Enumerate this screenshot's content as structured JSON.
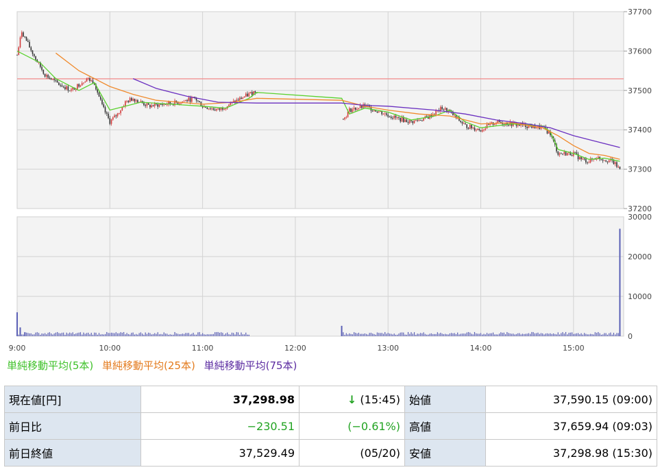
{
  "chart_data": [
    {
      "type": "candlestick",
      "ylim": [
        37200,
        37700
      ],
      "y_ticks": [
        "37700",
        "37600",
        "37500",
        "37400",
        "37300",
        "37200"
      ],
      "x_ticks": [
        "9:00",
        "10:00",
        "11:00",
        "12:00",
        "13:00",
        "14:00",
        "15:00"
      ],
      "reference_line": 37529.49,
      "price_path": [
        [
          "9:00",
          37590
        ],
        [
          "9:03",
          37650
        ],
        [
          "9:08",
          37610
        ],
        [
          "9:12",
          37580
        ],
        [
          "9:18",
          37540
        ],
        [
          "9:25",
          37520
        ],
        [
          "9:35",
          37500
        ],
        [
          "9:45",
          37530
        ],
        [
          "9:50",
          37520
        ],
        [
          "9:55",
          37460
        ],
        [
          "10:00",
          37420
        ],
        [
          "10:05",
          37440
        ],
        [
          "10:10",
          37470
        ],
        [
          "10:15",
          37480
        ],
        [
          "10:25",
          37460
        ],
        [
          "10:35",
          37465
        ],
        [
          "10:45",
          37470
        ],
        [
          "10:55",
          37480
        ],
        [
          "11:00",
          37460
        ],
        [
          "11:10",
          37450
        ],
        [
          "11:20",
          37470
        ],
        [
          "11:30",
          37490
        ],
        [
          "11:35",
          37500
        ],
        [
          "12:30",
          37420
        ],
        [
          "12:35",
          37450
        ],
        [
          "12:45",
          37460
        ],
        [
          "12:55",
          37445
        ],
        [
          "13:05",
          37430
        ],
        [
          "13:15",
          37420
        ],
        [
          "13:25",
          37430
        ],
        [
          "13:35",
          37455
        ],
        [
          "13:40",
          37445
        ],
        [
          "13:50",
          37410
        ],
        [
          "14:00",
          37400
        ],
        [
          "14:10",
          37420
        ],
        [
          "14:20",
          37415
        ],
        [
          "14:30",
          37410
        ],
        [
          "14:40",
          37405
        ],
        [
          "14:45",
          37390
        ],
        [
          "14:50",
          37340
        ],
        [
          "15:00",
          37340
        ],
        [
          "15:05",
          37325
        ],
        [
          "15:10",
          37320
        ],
        [
          "15:15",
          37330
        ],
        [
          "15:20",
          37325
        ],
        [
          "15:25",
          37320
        ],
        [
          "15:30",
          37300
        ]
      ],
      "series": [
        {
          "name": "単純移動平均(5本)",
          "color": "#5ad12e",
          "points": [
            [
              "9:00",
              37600
            ],
            [
              "9:15",
              37570
            ],
            [
              "9:25",
              37530
            ],
            [
              "9:40",
              37500
            ],
            [
              "9:50",
              37520
            ],
            [
              "10:00",
              37450
            ],
            [
              "10:10",
              37460
            ],
            [
              "10:20",
              37470
            ],
            [
              "10:40",
              37465
            ],
            [
              "11:00",
              37460
            ],
            [
              "11:15",
              37455
            ],
            [
              "11:30",
              37480
            ],
            [
              "11:35",
              37495
            ],
            [
              "12:30",
              37480
            ],
            [
              "12:35",
              37440
            ],
            [
              "12:45",
              37455
            ],
            [
              "13:00",
              37445
            ],
            [
              "13:15",
              37425
            ],
            [
              "13:30",
              37435
            ],
            [
              "13:40",
              37450
            ],
            [
              "13:50",
              37420
            ],
            [
              "14:00",
              37405
            ],
            [
              "14:20",
              37415
            ],
            [
              "14:40",
              37410
            ],
            [
              "14:45",
              37395
            ],
            [
              "14:50",
              37350
            ],
            [
              "15:00",
              37340
            ],
            [
              "15:10",
              37325
            ],
            [
              "15:20",
              37328
            ],
            [
              "15:30",
              37320
            ]
          ]
        },
        {
          "name": "単純移動平均(25本)",
          "color": "#f08a2c",
          "points": [
            [
              "9:25",
              37595
            ],
            [
              "9:40",
              37550
            ],
            [
              "9:50",
              37530
            ],
            [
              "10:00",
              37510
            ],
            [
              "10:15",
              37490
            ],
            [
              "10:30",
              37475
            ],
            [
              "11:00",
              37465
            ],
            [
              "11:20",
              37470
            ],
            [
              "11:35",
              37480
            ],
            [
              "12:30",
              37475
            ],
            [
              "12:45",
              37460
            ],
            [
              "13:00",
              37450
            ],
            [
              "13:20",
              37440
            ],
            [
              "13:40",
              37435
            ],
            [
              "14:00",
              37415
            ],
            [
              "14:20",
              37418
            ],
            [
              "14:40",
              37405
            ],
            [
              "14:50",
              37385
            ],
            [
              "15:00",
              37360
            ],
            [
              "15:10",
              37340
            ],
            [
              "15:20",
              37335
            ],
            [
              "15:30",
              37325
            ]
          ]
        },
        {
          "name": "単純移動平均(75本)",
          "color": "#6a2fc0",
          "points": [
            [
              "10:15",
              37530
            ],
            [
              "10:30",
              37505
            ],
            [
              "10:50",
              37485
            ],
            [
              "11:10",
              37470
            ],
            [
              "11:35",
              37468
            ],
            [
              "12:30",
              37468
            ],
            [
              "12:45",
              37462
            ],
            [
              "13:00",
              37460
            ],
            [
              "13:30",
              37450
            ],
            [
              "13:50",
              37440
            ],
            [
              "14:10",
              37425
            ],
            [
              "14:30",
              37415
            ],
            [
              "14:45",
              37405
            ],
            [
              "15:00",
              37385
            ],
            [
              "15:15",
              37370
            ],
            [
              "15:30",
              37355
            ]
          ]
        }
      ]
    },
    {
      "type": "bar",
      "ylim": [
        0,
        30000
      ],
      "y_ticks": [
        "30000",
        "20000",
        "10000",
        "0"
      ],
      "color": "#5a5fb5",
      "volume": [
        [
          "9:00",
          6000
        ],
        [
          "9:02",
          2200
        ],
        [
          "9:05",
          1000
        ],
        [
          "12:30",
          2600
        ],
        [
          "15:30",
          27000
        ]
      ],
      "baseline_volume": 700
    }
  ],
  "legend": [
    {
      "label": "単純移動平均(5本)",
      "color": "#3fc12a"
    },
    {
      "label": "単純移動平均(25本)",
      "color": "#e37a1c"
    },
    {
      "label": "単純移動平均(75本)",
      "color": "#5a2aa0"
    }
  ],
  "quote": {
    "current_label": "現在値[円]",
    "current_value": "37,298.98",
    "current_arrow": "↓",
    "current_time": "(15:45)",
    "open_label": "始値",
    "open_value": "37,590.15 (09:00)",
    "change_label": "前日比",
    "change_value": "−230.51",
    "change_pct": "(−0.61%)",
    "high_label": "高値",
    "high_value": "37,659.94 (09:03)",
    "prev_label": "前日終値",
    "prev_value": "37,529.49",
    "prev_date": "(05/20)",
    "low_label": "安値",
    "low_value": "37,298.98 (15:30)"
  }
}
